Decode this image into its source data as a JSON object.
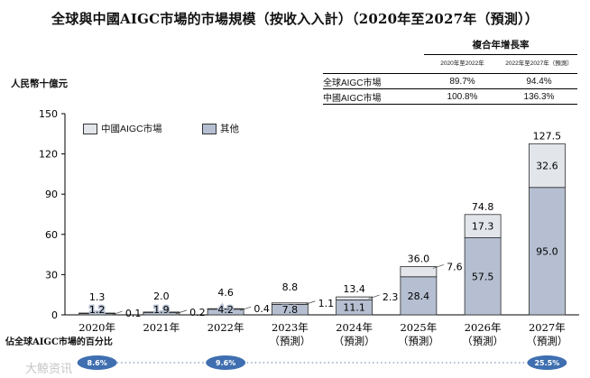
{
  "title": "全球與中國AIGC市場的市場規模（按收入入計）（2020年至2027年（預測））",
  "ylabel": "人民幣十億元",
  "cagr_table": {
    "header": "複合年增長率",
    "col1": "2020年至2022年",
    "col2": "2022年至2027年（預測）",
    "rows": [
      {
        "label": "全球AIGC市場",
        "v1": "89.7%",
        "v2": "94.4%"
      },
      {
        "label": "中國AIGC市場",
        "v1": "100.8%",
        "v2": "136.3%"
      }
    ]
  },
  "legend": {
    "china": "中國AIGC市場",
    "other": "其他"
  },
  "share_label": "佔全球AIGC市場的百分比",
  "watermark": "大鲸资讯",
  "colors": {
    "china": "#e2e5ea",
    "other": "#b5bfd1",
    "oval": "#3f6fb0"
  },
  "chart_data": {
    "type": "bar",
    "stacked": true,
    "categories": [
      "2020年",
      "2021年",
      "2022年",
      "2023年（預測）",
      "2024年（預測）",
      "2025年（預測）",
      "2026年（預測）",
      "2027年（預測）"
    ],
    "category_lines": [
      [
        "2020年"
      ],
      [
        "2021年"
      ],
      [
        "2022年"
      ],
      [
        "2023年",
        "（預測）"
      ],
      [
        "2024年",
        "（預測）"
      ],
      [
        "2025年",
        "（預測）"
      ],
      [
        "2026年",
        "（預測）"
      ],
      [
        "2027年",
        "（預測）"
      ]
    ],
    "series": [
      {
        "name": "其他",
        "values": [
          1.2,
          1.9,
          4.2,
          7.8,
          11.1,
          28.4,
          57.5,
          95.0
        ]
      },
      {
        "name": "中國AIGC市場",
        "values": [
          0.1,
          0.2,
          0.4,
          1.1,
          2.3,
          7.6,
          17.3,
          32.6
        ]
      }
    ],
    "totals": [
      1.3,
      2.0,
      4.6,
      8.8,
      13.4,
      36.0,
      74.8,
      127.5
    ],
    "other_labels": [
      "1.2",
      "1.9",
      "4.2",
      "7.8",
      "11.1",
      "28.4",
      "57.5",
      "95.0"
    ],
    "china_labels": [
      "0.1",
      "0.2",
      "0.4",
      "1.1",
      "2.3",
      "7.6",
      "17.3",
      "32.6"
    ],
    "total_labels": [
      "1.3",
      "2.0",
      "4.6",
      "8.8",
      "13.4",
      "36.0",
      "74.8",
      "127.5"
    ],
    "yticks": [
      0,
      30,
      60,
      90,
      120,
      150
    ],
    "ylim": [
      0,
      150
    ],
    "china_share_pct": [
      {
        "category": "2020年",
        "label": "8.6%"
      },
      {
        "category": "2022年",
        "label": "9.6%"
      },
      {
        "category": "2027年（預測）",
        "label": "25.5%"
      }
    ]
  }
}
